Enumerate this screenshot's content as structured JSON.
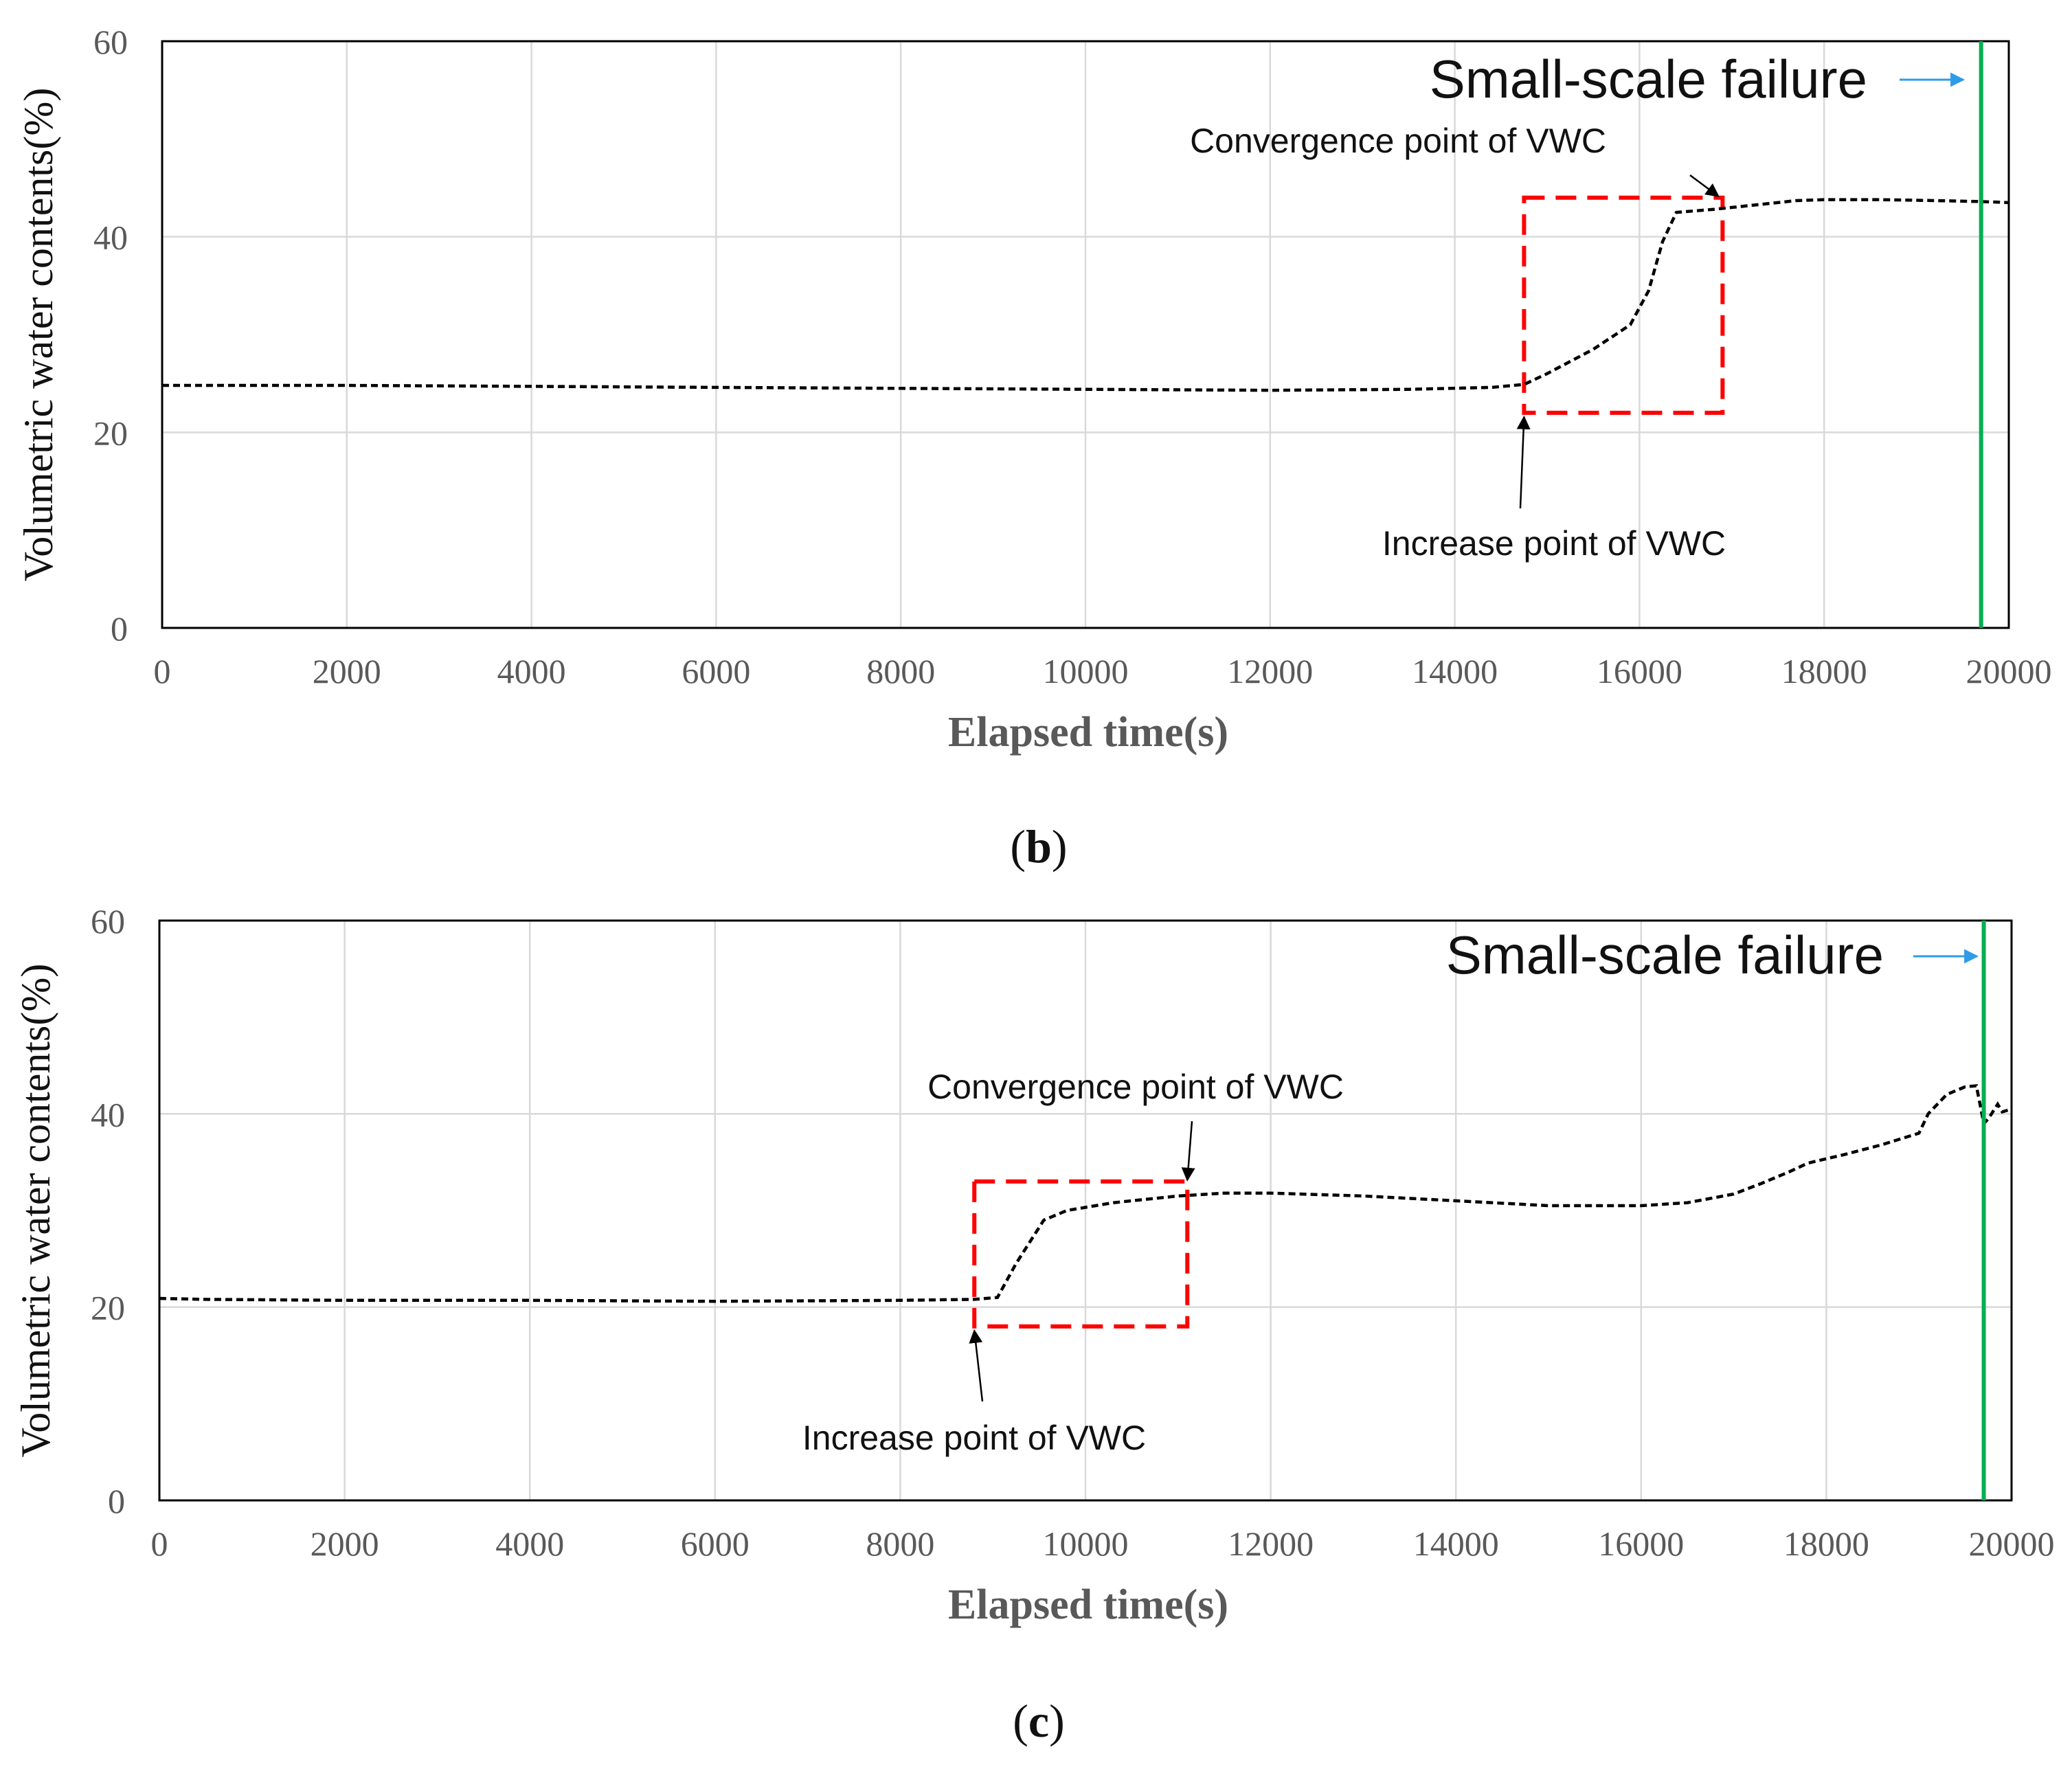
{
  "colors": {
    "grid": "#d9d9d9",
    "frame": "#000000",
    "series": "#000000",
    "box": "#ff0000",
    "failure_line": "#00b050",
    "failure_arrow": "#2e9be8"
  },
  "chart_data": [
    {
      "type": "line",
      "panel_label": "b",
      "xlabel": "Elapsed time(s)",
      "ylabel": "Volumetric  water  contents(%)",
      "xlim": [
        0,
        20000
      ],
      "ylim": [
        0,
        60
      ],
      "x_ticks": [
        "0",
        "2000",
        "4000",
        "6000",
        "8000",
        "10000",
        "12000",
        "14000",
        "16000",
        "18000",
        "20000"
      ],
      "y_ticks": [
        "0",
        "20",
        "40",
        "60"
      ],
      "grid": true,
      "series": [
        {
          "name": "VWC",
          "style": "dashed",
          "x": [
            0,
            2000,
            4000,
            6000,
            8000,
            10000,
            12000,
            13500,
            14400,
            14750,
            15000,
            15500,
            15900,
            16100,
            16250,
            16400,
            16800,
            17200,
            17700,
            18000,
            18600,
            19200,
            19700,
            20000
          ],
          "y": [
            24.8,
            24.8,
            24.7,
            24.6,
            24.5,
            24.4,
            24.3,
            24.4,
            24.6,
            24.9,
            26.0,
            28.5,
            31.0,
            34.5,
            39.5,
            42.5,
            42.8,
            43.2,
            43.7,
            43.8,
            43.8,
            43.7,
            43.6,
            43.5
          ]
        }
      ],
      "annotations": {
        "failure_label": "Small-scale failure",
        "failure_x": 19700,
        "box": {
          "x0": 14750,
          "x1": 16900,
          "y0": 22,
          "y1": 44
        },
        "convergence_label": "Convergence point of VWC",
        "convergence_point": {
          "x": 16900,
          "y": 44
        },
        "increase_label": "Increase point of VWC",
        "increase_point": {
          "x": 14750,
          "y": 22
        }
      }
    },
    {
      "type": "line",
      "panel_label": "c",
      "xlabel": "Elapsed time(s)",
      "ylabel": "Volumetric  water  contents(%)",
      "xlim": [
        0,
        20000
      ],
      "ylim": [
        0,
        60
      ],
      "x_ticks": [
        "0",
        "2000",
        "4000",
        "6000",
        "8000",
        "10000",
        "12000",
        "14000",
        "16000",
        "18000",
        "20000"
      ],
      "y_ticks": [
        "0",
        "20",
        "40",
        "60"
      ],
      "grid": true,
      "series": [
        {
          "name": "VWC",
          "style": "dashed",
          "x": [
            0,
            500,
            2000,
            4000,
            6000,
            8000,
            8800,
            9050,
            9250,
            9550,
            9800,
            10300,
            11000,
            11500,
            12000,
            13000,
            14000,
            15000,
            16000,
            16500,
            17000,
            17300,
            17600,
            17800,
            18200,
            18600,
            19000,
            19100,
            19300,
            19500,
            19620,
            19700,
            19750,
            19850,
            19900,
            20000
          ],
          "y": [
            20.9,
            20.8,
            20.7,
            20.7,
            20.6,
            20.7,
            20.8,
            21.0,
            24.5,
            29.0,
            30.0,
            30.8,
            31.5,
            31.8,
            31.8,
            31.5,
            31.0,
            30.5,
            30.5,
            30.8,
            31.7,
            32.8,
            34.0,
            34.9,
            35.8,
            36.8,
            38.0,
            40.0,
            42.0,
            42.8,
            42.9,
            39.0,
            39.5,
            41.0,
            40.2,
            40.5
          ]
        }
      ],
      "annotations": {
        "failure_label": "Small-scale failure",
        "failure_x": 19700,
        "box": {
          "x0": 8800,
          "x1": 11100,
          "y0": 18,
          "y1": 33
        },
        "convergence_label": "Convergence point of VWC",
        "convergence_point": {
          "x": 11100,
          "y": 33
        },
        "increase_label": "Increase point of VWC",
        "increase_point": {
          "x": 8800,
          "y": 18
        }
      }
    }
  ]
}
